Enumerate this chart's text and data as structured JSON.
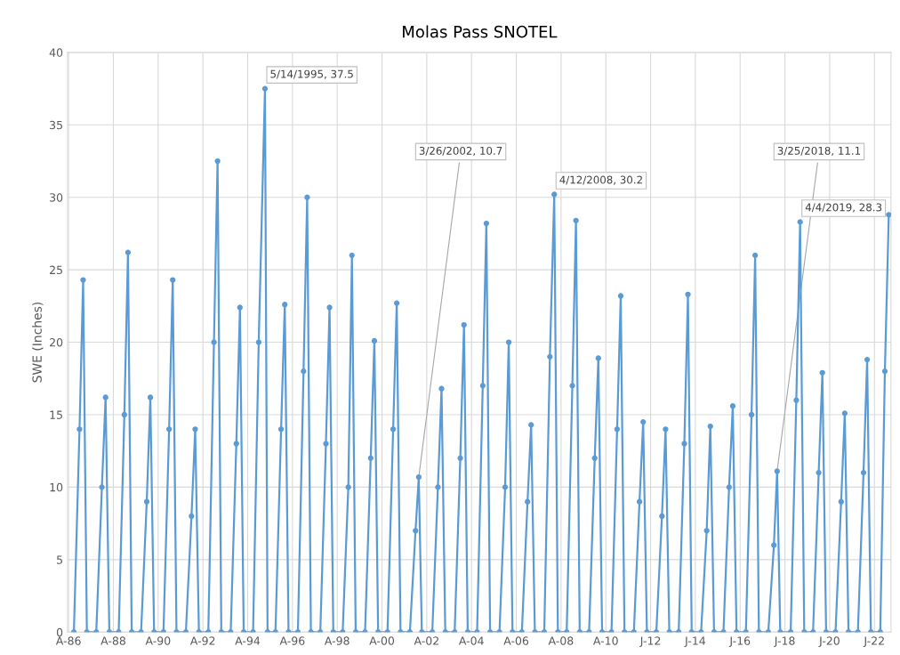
{
  "chart_data": {
    "type": "line",
    "title": "Molas Pass SNOTEL",
    "ylabel": "SWE (Inches)",
    "xlim": [
      "1986-07-20",
      "2023-04-25"
    ],
    "xticks": [
      {
        "value": "1986-08-07",
        "label": "A-86"
      },
      {
        "value": "1988-08-06",
        "label": "A-88"
      },
      {
        "value": "1990-08-06",
        "label": "A-90"
      },
      {
        "value": "1992-08-05",
        "label": "A-92"
      },
      {
        "value": "1994-08-05",
        "label": "A-94"
      },
      {
        "value": "1996-08-04",
        "label": "A-96"
      },
      {
        "value": "1998-08-04",
        "label": "A-98"
      },
      {
        "value": "2000-08-03",
        "label": "A-00"
      },
      {
        "value": "2002-08-03",
        "label": "A-02"
      },
      {
        "value": "2004-08-02",
        "label": "A-04"
      },
      {
        "value": "2006-08-02",
        "label": "A-06"
      },
      {
        "value": "2008-08-01",
        "label": "A-08"
      },
      {
        "value": "2010-08-01",
        "label": "A-10"
      },
      {
        "value": "2012-07-31",
        "label": "J-12"
      },
      {
        "value": "2014-07-31",
        "label": "J-14"
      },
      {
        "value": "2016-07-30",
        "label": "J-16"
      },
      {
        "value": "2018-07-30",
        "label": "J-18"
      },
      {
        "value": "2020-07-29",
        "label": "J-20"
      },
      {
        "value": "2022-07-29",
        "label": "J-22"
      }
    ],
    "ylim": [
      0,
      40
    ],
    "yticks": [
      0,
      5,
      10,
      15,
      20,
      25,
      30,
      35,
      40
    ],
    "grid": true,
    "marker": "circle",
    "series": [
      {
        "color": "#5b9bd5",
        "x": [
          "1986-11-01",
          "1987-02-01",
          "1987-04-01",
          "1987-06-01",
          "1987-11-01",
          "1988-02-01",
          "1988-04-01",
          "1988-06-01",
          "1988-11-01",
          "1989-02-01",
          "1989-04-01",
          "1989-06-01",
          "1989-11-01",
          "1990-02-01",
          "1990-04-01",
          "1990-06-01",
          "1990-11-01",
          "1991-02-01",
          "1991-04-01",
          "1991-06-01",
          "1991-11-01",
          "1992-02-01",
          "1992-04-01",
          "1992-06-01",
          "1992-11-01",
          "1993-02-01",
          "1993-04-01",
          "1993-06-01",
          "1993-11-01",
          "1994-02-01",
          "1994-04-01",
          "1994-06-01",
          "1994-11-01",
          "1995-02-01",
          "1995-05-14",
          "1995-06-25",
          "1995-11-01",
          "1996-02-01",
          "1996-04-01",
          "1996-06-01",
          "1996-11-01",
          "1997-02-01",
          "1997-04-01",
          "1997-06-01",
          "1997-11-01",
          "1998-02-01",
          "1998-04-01",
          "1998-06-01",
          "1998-11-01",
          "1999-02-01",
          "1999-04-01",
          "1999-06-01",
          "1999-11-01",
          "2000-02-01",
          "2000-04-01",
          "2000-06-01",
          "2000-11-01",
          "2001-02-01",
          "2001-04-01",
          "2001-06-01",
          "2001-11-01",
          "2002-02-01",
          "2002-03-26",
          "2002-05-15",
          "2002-11-01",
          "2003-02-01",
          "2003-04-01",
          "2003-06-01",
          "2003-11-01",
          "2004-02-01",
          "2004-04-01",
          "2004-06-01",
          "2004-11-01",
          "2005-02-01",
          "2005-04-01",
          "2005-06-01",
          "2005-11-01",
          "2006-02-01",
          "2006-04-01",
          "2006-06-01",
          "2006-11-01",
          "2007-02-01",
          "2007-04-01",
          "2007-06-01",
          "2007-11-01",
          "2008-02-01",
          "2008-04-12",
          "2008-06-10",
          "2008-11-01",
          "2009-02-01",
          "2009-04-01",
          "2009-06-01",
          "2009-11-01",
          "2010-02-01",
          "2010-04-01",
          "2010-06-01",
          "2010-11-01",
          "2011-02-01",
          "2011-04-01",
          "2011-06-01",
          "2011-11-01",
          "2012-02-01",
          "2012-04-01",
          "2012-06-01",
          "2012-11-01",
          "2013-02-01",
          "2013-04-01",
          "2013-06-01",
          "2013-11-01",
          "2014-02-01",
          "2014-04-01",
          "2014-06-01",
          "2014-11-01",
          "2015-02-01",
          "2015-04-01",
          "2015-06-01",
          "2015-11-01",
          "2016-02-01",
          "2016-04-01",
          "2016-06-01",
          "2016-11-01",
          "2017-02-01",
          "2017-04-01",
          "2017-06-01",
          "2017-11-01",
          "2018-02-01",
          "2018-03-25",
          "2018-05-15",
          "2018-11-01",
          "2019-02-01",
          "2019-04-04",
          "2019-06-10",
          "2019-11-01",
          "2020-02-01",
          "2020-04-01",
          "2020-06-01",
          "2020-11-01",
          "2021-02-01",
          "2021-04-01",
          "2021-06-01",
          "2021-11-01",
          "2022-02-01",
          "2022-04-01",
          "2022-06-01",
          "2022-11-01",
          "2023-01-15",
          "2023-03-20"
        ],
        "values": [
          0,
          14,
          24.3,
          0,
          0,
          10,
          16.2,
          0,
          0,
          15,
          26.2,
          0,
          0,
          9,
          16.2,
          0,
          0,
          14,
          24.3,
          0,
          0,
          8,
          14,
          0,
          0,
          20,
          32.5,
          0,
          0,
          13,
          22.4,
          0,
          0,
          20,
          37.5,
          0,
          0,
          14,
          22.6,
          0,
          0,
          18,
          30,
          0,
          0,
          13,
          22.4,
          0,
          0,
          10,
          26,
          0,
          0,
          12,
          20.1,
          0,
          0,
          14,
          22.7,
          0,
          0,
          7,
          10.7,
          0,
          0,
          10,
          16.8,
          0,
          0,
          12,
          21.2,
          0,
          0,
          17,
          28.2,
          0,
          0,
          10,
          20,
          0,
          0,
          9,
          14.3,
          0,
          0,
          19,
          30.2,
          0,
          0,
          17,
          28.4,
          0,
          0,
          12,
          18.9,
          0,
          0,
          14,
          23.2,
          0,
          0,
          9,
          14.5,
          0,
          0,
          8,
          14,
          0,
          0,
          13,
          23.3,
          0,
          0,
          7,
          14.2,
          0,
          0,
          10,
          15.6,
          0,
          0,
          15,
          26,
          0,
          0,
          6,
          11.1,
          0,
          0,
          16,
          28.3,
          0,
          0,
          11,
          17.9,
          0,
          0,
          9,
          15.1,
          0,
          0,
          11,
          18.8,
          0,
          0,
          18,
          28.8
        ]
      }
    ],
    "annotations": [
      {
        "text": "5/14/1995, 37.5",
        "x": "1995-05-14",
        "y": 37.5
      },
      {
        "text": "3/26/2002, 10.7",
        "x": "2002-03-26",
        "y": 10.7
      },
      {
        "text": "4/12/2008, 30.2",
        "x": "2008-04-12",
        "y": 30.2
      },
      {
        "text": "3/25/2018, 11.1",
        "x": "2018-03-25",
        "y": 11.1
      },
      {
        "text": "4/4/2019, 28.3",
        "x": "2019-04-04",
        "y": 28.3
      }
    ]
  }
}
